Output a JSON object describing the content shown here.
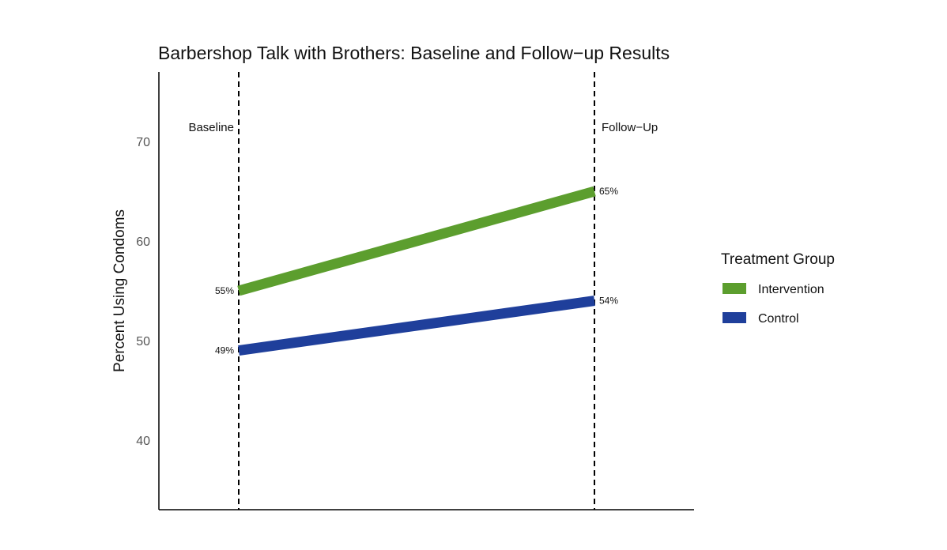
{
  "chart_data": {
    "type": "line",
    "title": "Barbershop Talk with Brothers: Baseline and Follow−up Results",
    "ylabel": "Percent Using Condoms",
    "xlabel": "",
    "categories": [
      "Baseline",
      "Follow−Up"
    ],
    "ylim": [
      33,
      77
    ],
    "yticks": [
      40,
      50,
      60,
      70
    ],
    "grid": false,
    "legend": {
      "title": "Treatment Group",
      "placement": "right"
    },
    "series": [
      {
        "name": "Intervention",
        "values": [
          55,
          65
        ],
        "labels": [
          "55%",
          "65%"
        ],
        "color": "#5c9e2e"
      },
      {
        "name": "Control",
        "values": [
          49,
          54
        ],
        "labels": [
          "49%",
          "54%"
        ],
        "color": "#1f3f9b"
      }
    ]
  }
}
